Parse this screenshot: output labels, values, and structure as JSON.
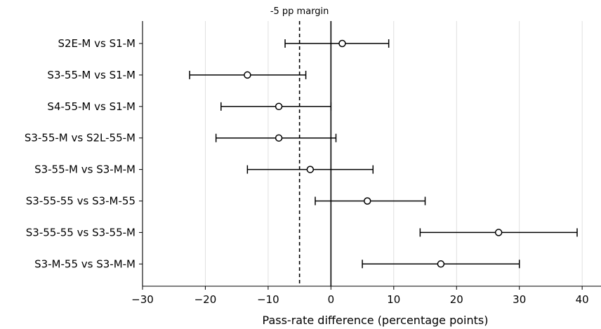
{
  "chart_data": {
    "type": "forest",
    "xlabel": "Pass-rate difference (percentage points)",
    "xlim": [
      -30,
      43
    ],
    "xticks": [
      -30,
      -20,
      -10,
      0,
      10,
      20,
      30,
      40
    ],
    "xtick_labels": [
      "−30",
      "−20",
      "−10",
      "0",
      "10",
      "20",
      "30",
      "40"
    ],
    "grid": "vertical",
    "reference_line": 0,
    "margin_line": {
      "value": -5,
      "label": "-5 pp margin",
      "style": "dashed"
    },
    "comparisons": [
      {
        "label": "S2E-M vs S1-M",
        "estimate": 1.8,
        "ci_low": -7.3,
        "ci_high": 9.2
      },
      {
        "label": "S3-55-M vs S1-M",
        "estimate": -13.3,
        "ci_low": -22.5,
        "ci_high": -4.0
      },
      {
        "label": "S4-55-M vs S1-M",
        "estimate": -8.3,
        "ci_low": -17.5,
        "ci_high": 0.0
      },
      {
        "label": "S3-55-M vs S2L-55-M",
        "estimate": -8.3,
        "ci_low": -18.3,
        "ci_high": 0.8
      },
      {
        "label": "S3-55-M vs S3-M-M",
        "estimate": -3.3,
        "ci_low": -13.3,
        "ci_high": 6.7
      },
      {
        "label": "S3-55-55 vs S3-M-55",
        "estimate": 5.8,
        "ci_low": -2.5,
        "ci_high": 15.0
      },
      {
        "label": "S3-55-55 vs S3-55-M",
        "estimate": 26.7,
        "ci_low": 14.2,
        "ci_high": 39.2
      },
      {
        "label": "S3-M-55 vs S3-M-M",
        "estimate": 17.5,
        "ci_low": 5.0,
        "ci_high": 30.0
      }
    ]
  }
}
